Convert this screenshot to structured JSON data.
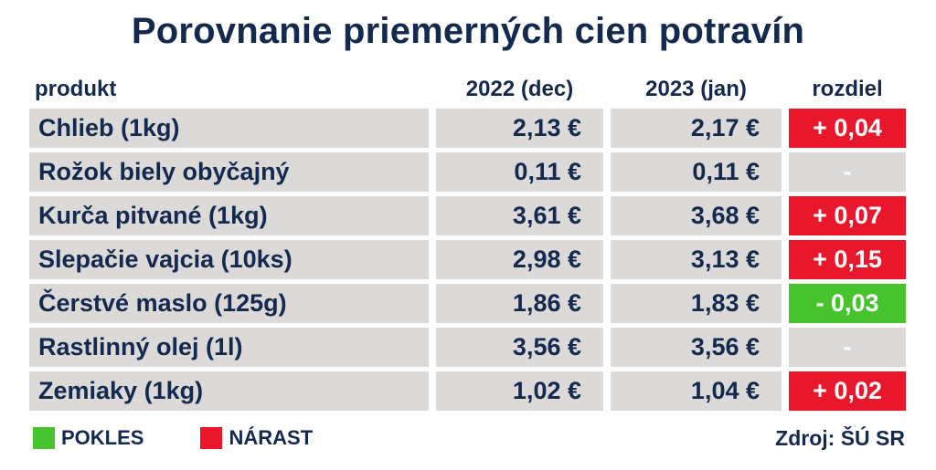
{
  "title": "Porovnanie priemerných cien potravín",
  "table": {
    "headers": {
      "product": "produkt",
      "col2022": "2022 (dec)",
      "col2023": "2023 (jan)",
      "diff": "rozdiel"
    },
    "rows": [
      {
        "product": "Chlieb (1kg)",
        "price_2022": "2,13 €",
        "price_2023": "2,17 €",
        "diff": "+ 0,04",
        "diff_type": "increase"
      },
      {
        "product": "Rožok biely obyčajný",
        "price_2022": "0,11 €",
        "price_2023": "0,11 €",
        "diff": "-",
        "diff_type": "none"
      },
      {
        "product": "Kurča pitvané (1kg)",
        "price_2022": "3,61 €",
        "price_2023": "3,68 €",
        "diff": "+ 0,07",
        "diff_type": "increase"
      },
      {
        "product": "Slepačie vajcia (10ks)",
        "price_2022": "2,98 €",
        "price_2023": "3,13 €",
        "diff": "+ 0,15",
        "diff_type": "increase"
      },
      {
        "product": "Čerstvé maslo (125g)",
        "price_2022": "1,86 €",
        "price_2023": "1,83 €",
        "diff": "- 0,03",
        "diff_type": "decrease"
      },
      {
        "product": "Rastlinný olej (1l)",
        "price_2022": "3,56 €",
        "price_2023": "3,56 €",
        "diff": "-",
        "diff_type": "none"
      },
      {
        "product": "Zemiaky (1kg)",
        "price_2022": "1,02 €",
        "price_2023": "1,04 €",
        "diff": "+ 0,02",
        "diff_type": "increase"
      }
    ]
  },
  "legend": [
    {
      "label": "POKLES",
      "type": "decrease",
      "color": "#46c32d"
    },
    {
      "label": "NÁRAST",
      "type": "increase",
      "color": "#e8172c"
    }
  ],
  "source": "Zdroj: ŠÚ SR",
  "colors": {
    "navy_text": "#14294e",
    "cell_gray": "#dcdad9",
    "increase_red": "#e8172c",
    "decrease_green": "#46c32d",
    "background": "#ffffff"
  },
  "chart_data": {
    "type": "table",
    "title": "Porovnanie priemerných cien potravín",
    "columns": [
      "produkt",
      "2022 (dec)",
      "2023 (jan)",
      "rozdiel"
    ],
    "currency": "EUR",
    "rows": [
      {
        "produkt": "Chlieb (1kg)",
        "price_2022_dec": 2.13,
        "price_2023_jan": 2.17,
        "rozdiel": 0.04
      },
      {
        "produkt": "Rožok biely obyčajný",
        "price_2022_dec": 0.11,
        "price_2023_jan": 0.11,
        "rozdiel": 0
      },
      {
        "produkt": "Kurča pitvané (1kg)",
        "price_2022_dec": 3.61,
        "price_2023_jan": 3.68,
        "rozdiel": 0.07
      },
      {
        "produkt": "Slepačie vajcia (10ks)",
        "price_2022_dec": 2.98,
        "price_2023_jan": 3.13,
        "rozdiel": 0.15
      },
      {
        "produkt": "Čerstvé maslo (125g)",
        "price_2022_dec": 1.86,
        "price_2023_jan": 1.83,
        "rozdiel": -0.03
      },
      {
        "produkt": "Rastlinný olej (1l)",
        "price_2022_dec": 3.56,
        "price_2023_jan": 3.56,
        "rozdiel": 0
      },
      {
        "produkt": "Zemiaky (1kg)",
        "price_2022_dec": 1.02,
        "price_2023_jan": 1.04,
        "rozdiel": 0.02
      }
    ],
    "legend": [
      {
        "label": "POKLES",
        "meaning": "price decrease",
        "color": "#46c32d"
      },
      {
        "label": "NÁRAST",
        "meaning": "price increase",
        "color": "#e8172c"
      }
    ],
    "source": "Zdroj: ŠÚ SR"
  }
}
